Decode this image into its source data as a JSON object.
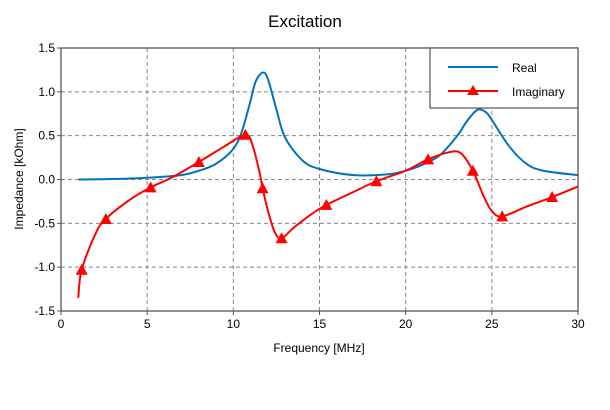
{
  "chart_data": {
    "type": "line",
    "title": "Excitation",
    "xlabel": "Frequency [MHz]",
    "ylabel": "Impedance [kOhm]",
    "xlim": [
      0,
      30
    ],
    "ylim": [
      -1.5,
      1.5
    ],
    "xticks": [
      0,
      5,
      10,
      15,
      20,
      25,
      30
    ],
    "yticks": [
      -1.5,
      -1.0,
      -0.5,
      0.0,
      0.5,
      1.0,
      1.5
    ],
    "ytick_labels": [
      "-1.5",
      "-1.0",
      "-0.5",
      "0.0",
      "0.5",
      "1.0",
      "1.5"
    ],
    "grid": true,
    "legend_position": "top-right",
    "series": [
      {
        "name": "Real",
        "color": "#0072bd",
        "marker": "none",
        "x": [
          1,
          3,
          5,
          7,
          8,
          9,
          10,
          10.5,
          11,
          11.3,
          11.7,
          12,
          12.5,
          13,
          14,
          15,
          17,
          19,
          20,
          21,
          22,
          23,
          23.5,
          24,
          24.3,
          24.7,
          25,
          26,
          27,
          28,
          30
        ],
        "y": [
          0,
          0.005,
          0.02,
          0.05,
          0.1,
          0.18,
          0.35,
          0.55,
          0.9,
          1.12,
          1.22,
          1.15,
          0.8,
          0.48,
          0.22,
          0.12,
          0.05,
          0.06,
          0.1,
          0.17,
          0.28,
          0.5,
          0.65,
          0.77,
          0.8,
          0.76,
          0.68,
          0.38,
          0.18,
          0.1,
          0.05
        ]
      },
      {
        "name": "Imaginary",
        "color": "#ff0000",
        "marker": "triangle",
        "x": [
          1.0,
          1.2,
          2,
          2.6,
          4,
          5.2,
          6.5,
          8,
          9.5,
          10.7,
          11.1,
          11.5,
          11.7,
          12,
          12.4,
          12.8,
          13.5,
          14.5,
          15.4,
          17,
          18.3,
          20,
          21.3,
          22.5,
          23.2,
          23.9,
          24.5,
          25,
          25.6,
          27,
          28.5,
          30
        ],
        "y": [
          -1.35,
          -1.03,
          -0.62,
          -0.45,
          -0.23,
          -0.09,
          0.03,
          0.2,
          0.38,
          0.51,
          0.4,
          0.1,
          -0.1,
          -0.35,
          -0.6,
          -0.67,
          -0.55,
          -0.4,
          -0.29,
          -0.14,
          -0.02,
          0.1,
          0.23,
          0.31,
          0.3,
          0.1,
          -0.18,
          -0.36,
          -0.42,
          -0.31,
          -0.2,
          -0.08
        ],
        "marker_x": [
          1.2,
          2.6,
          5.2,
          8,
          10.7,
          11.7,
          12.8,
          15.4,
          18.3,
          21.3,
          23.9,
          25.6,
          28.5
        ],
        "marker_y": [
          -1.03,
          -0.45,
          -0.09,
          0.2,
          0.51,
          -0.1,
          -0.67,
          -0.29,
          -0.02,
          0.23,
          0.1,
          -0.42,
          -0.2
        ]
      }
    ]
  }
}
